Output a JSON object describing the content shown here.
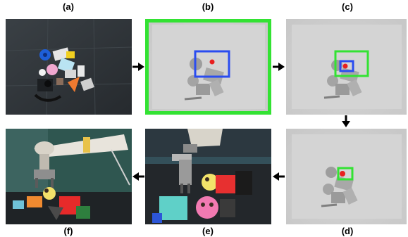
{
  "panels": {
    "a": {
      "label": "(a)"
    },
    "b": {
      "label": "(b)"
    },
    "c": {
      "label": "(c)"
    },
    "d": {
      "label": "(d)"
    },
    "e": {
      "label": "(e)"
    },
    "f": {
      "label": "(f)"
    }
  },
  "colors": {
    "green_box": "#33e233",
    "blue_box": "#2a4cf0",
    "red_point": "#e81f1f",
    "arrow": "#000000",
    "depth_background": "#d2d2d2",
    "floor_mat": "#2f3439"
  }
}
